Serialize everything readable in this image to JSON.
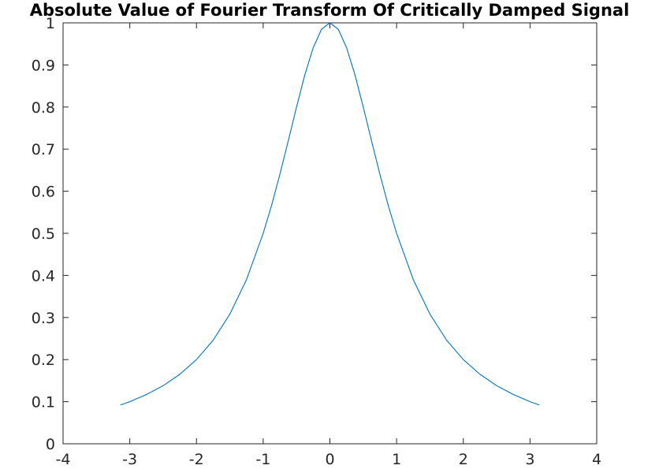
{
  "chart_data": {
    "type": "line",
    "title": "Absolute Value of Fourier Transform Of Critically Damped Signal",
    "xlabel": "",
    "ylabel": "",
    "xlim": [
      -4,
      4
    ],
    "ylim": [
      0,
      1
    ],
    "xticks": [
      -4,
      -3,
      -2,
      -1,
      0,
      1,
      2,
      3,
      4
    ],
    "yticks": [
      0,
      0.1,
      0.2,
      0.3,
      0.4,
      0.5,
      0.6,
      0.7,
      0.8,
      0.9,
      1
    ],
    "xtick_labels": [
      "-4",
      "-3",
      "-2",
      "-1",
      "0",
      "1",
      "2",
      "3",
      "4"
    ],
    "ytick_labels": [
      "0",
      "0.1",
      "0.2",
      "0.3",
      "0.4",
      "0.5",
      "0.6",
      "0.7",
      "0.8",
      "0.9",
      "1"
    ],
    "grid": false,
    "series": [
      {
        "color": "#0072BD",
        "x": [
          -3.1416,
          -3.0,
          -2.75,
          -2.5,
          -2.25,
          -2.0,
          -1.75,
          -1.5,
          -1.25,
          -1.0,
          -0.875,
          -0.75,
          -0.625,
          -0.5,
          -0.375,
          -0.25,
          -0.125,
          0.0,
          0.125,
          0.25,
          0.375,
          0.5,
          0.625,
          0.75,
          0.875,
          1.0,
          1.25,
          1.5,
          1.75,
          2.0,
          2.25,
          2.5,
          2.75,
          3.0,
          3.1416
        ],
        "y": [
          0.092,
          0.1,
          0.117,
          0.138,
          0.165,
          0.2,
          0.246,
          0.308,
          0.39,
          0.5,
          0.566,
          0.64,
          0.719,
          0.8,
          0.877,
          0.941,
          0.985,
          1.0,
          0.985,
          0.941,
          0.877,
          0.8,
          0.719,
          0.64,
          0.566,
          0.5,
          0.39,
          0.308,
          0.246,
          0.2,
          0.165,
          0.138,
          0.117,
          0.1,
          0.092
        ]
      }
    ]
  },
  "colors": {
    "axis": "#262626",
    "line": "#0072BD",
    "background": "#ffffff"
  }
}
